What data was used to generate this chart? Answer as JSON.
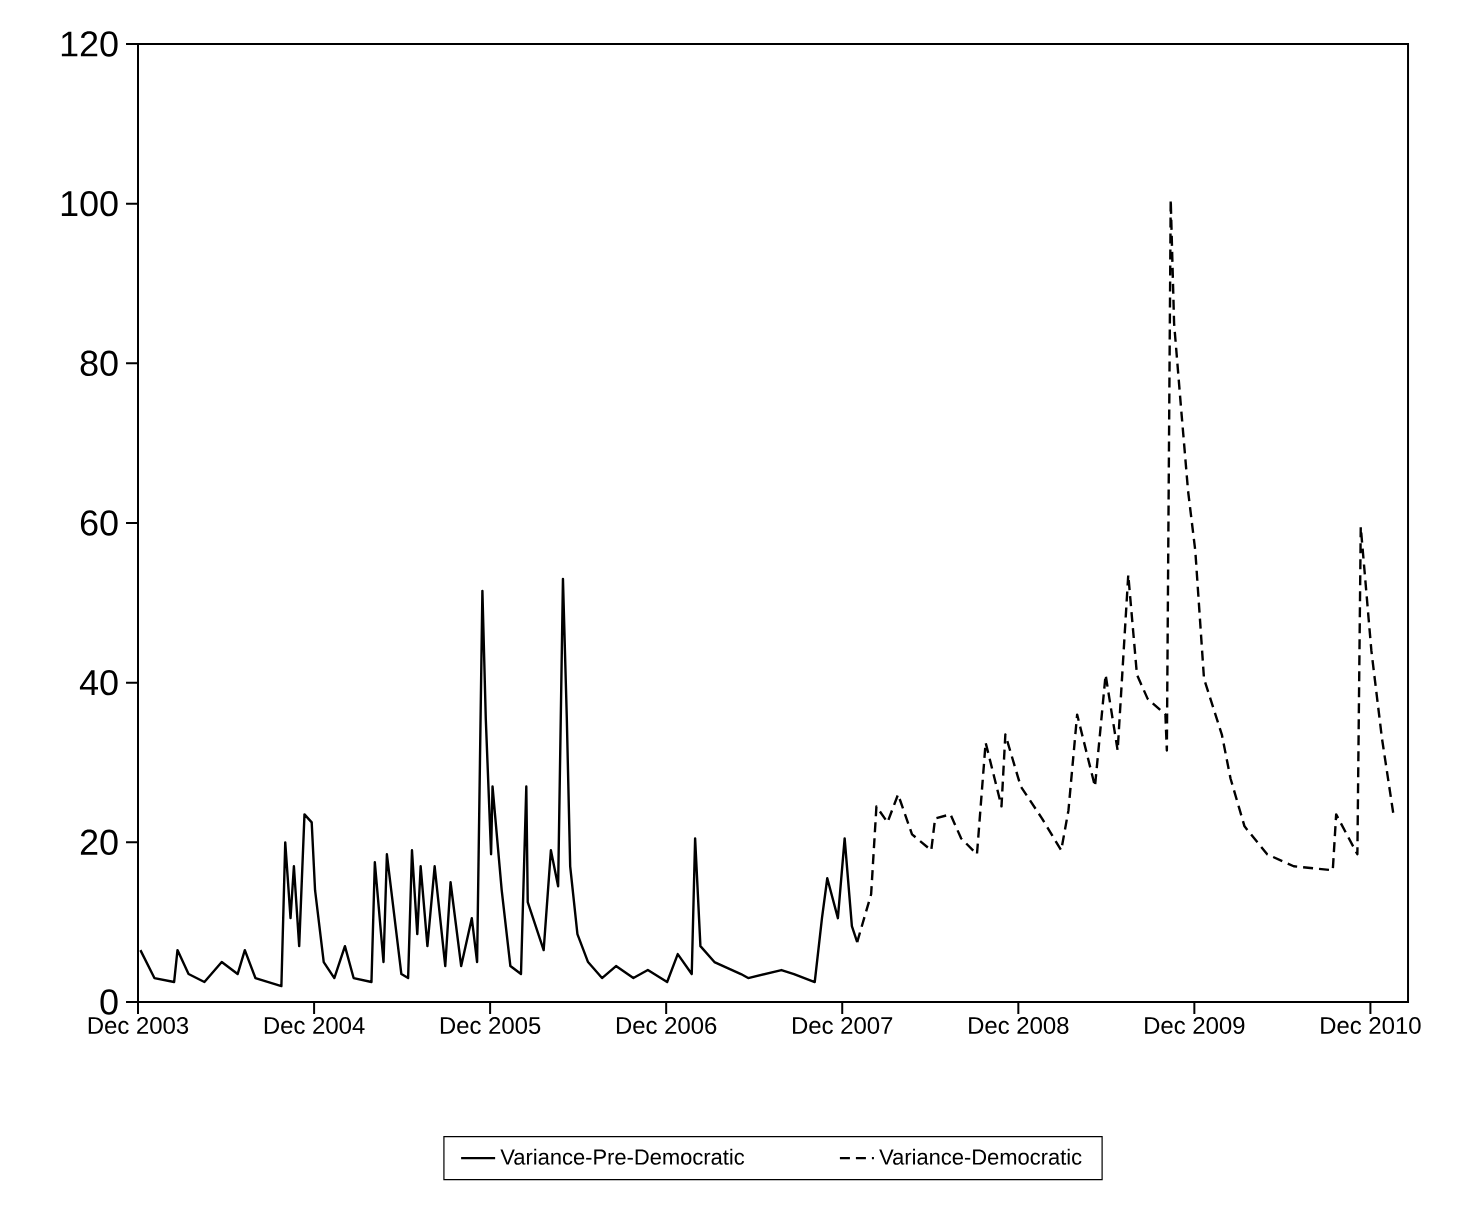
{
  "chart_data": {
    "type": "line",
    "xlim": [
      "2003-12-01",
      "2011-02-17"
    ],
    "xticks": [
      {
        "value": "2003-12-01",
        "label": "Dec 2003"
      },
      {
        "value": "2004-12-01",
        "label": "Dec 2004"
      },
      {
        "value": "2005-12-01",
        "label": "Dec 2005"
      },
      {
        "value": "2006-12-01",
        "label": "Dec 2006"
      },
      {
        "value": "2007-12-01",
        "label": "Dec 2007"
      },
      {
        "value": "2008-12-01",
        "label": "Dec 2008"
      },
      {
        "value": "2009-12-01",
        "label": "Dec 2009"
      },
      {
        "value": "2010-12-01",
        "label": "Dec 2010"
      }
    ],
    "ylim": [
      0,
      120
    ],
    "yticks": [
      0,
      20,
      40,
      60,
      80,
      100,
      120
    ],
    "grid": false,
    "legend": "bottom",
    "marker": "none",
    "series": [
      {
        "name": "Variance-Pre-Democratic",
        "color": "#000000",
        "line_style": "solid",
        "x": [
          "2003-12-06",
          "2004-01-04",
          "2004-02-14",
          "2004-02-21",
          "2004-03-15",
          "2004-04-17",
          "2004-05-23",
          "2004-06-25",
          "2004-07-10",
          "2004-08-01",
          "2004-09-24",
          "2004-10-02",
          "2004-10-13",
          "2004-10-20",
          "2004-10-31",
          "2004-11-11",
          "2004-11-26",
          "2004-12-03",
          "2004-12-21",
          "2005-01-12",
          "2005-02-03",
          "2005-02-21",
          "2005-03-30",
          "2005-04-06",
          "2005-04-24",
          "2005-05-01",
          "2005-05-31",
          "2005-06-14",
          "2005-06-22",
          "2005-07-03",
          "2005-07-10",
          "2005-07-24",
          "2005-08-08",
          "2005-08-30",
          "2005-09-10",
          "2005-10-02",
          "2005-10-24",
          "2005-11-04",
          "2005-11-15",
          "2005-11-22",
          "2005-12-03",
          "2005-12-06",
          "2005-12-25",
          "2006-01-12",
          "2006-02-03",
          "2006-02-14",
          "2006-02-17",
          "2006-03-22",
          "2006-04-06",
          "2006-04-21",
          "2006-05-01",
          "2006-05-09",
          "2006-05-16",
          "2006-05-31",
          "2006-06-22",
          "2006-07-21",
          "2006-08-19",
          "2006-09-24",
          "2006-10-24",
          "2006-12-03",
          "2006-12-25",
          "2007-01-23",
          "2007-01-30",
          "2007-02-10",
          "2007-03-11",
          "2007-05-05",
          "2007-05-20",
          "2007-07-28",
          "2007-08-23",
          "2007-10-05",
          "2007-10-20",
          "2007-10-31",
          "2007-11-22",
          "2007-12-06",
          "2007-12-21",
          "2008-01-01"
        ],
        "values": [
          6.5,
          3,
          2.5,
          6.5,
          3.5,
          2.5,
          5,
          3.5,
          6.5,
          3,
          2,
          20,
          10.5,
          17,
          7,
          23.5,
          22.5,
          14,
          5,
          3,
          7,
          3,
          2.5,
          17.5,
          5,
          18.5,
          3.5,
          3,
          19,
          8.5,
          17,
          7,
          17,
          4.5,
          15,
          4.5,
          10.5,
          5,
          51.5,
          35.5,
          18.5,
          27,
          14,
          4.5,
          3.5,
          27,
          12.5,
          6.5,
          19,
          14.5,
          53,
          35.5,
          17,
          8.5,
          5,
          3,
          4.5,
          3,
          4,
          2.5,
          6,
          3.5,
          20.5,
          7,
          5,
          3.5,
          3,
          4,
          3.5,
          2.5,
          10.5,
          15.5,
          10.5,
          20.5,
          9.5,
          7.5
        ]
      },
      {
        "name": "Variance-Democratic",
        "color": "#000000",
        "line_style": "dashed",
        "x": [
          "2008-01-01",
          "2008-01-30",
          "2008-02-10",
          "2008-03-04",
          "2008-03-26",
          "2008-04-24",
          "2008-06-03",
          "2008-06-11",
          "2008-07-13",
          "2008-08-04",
          "2008-09-06",
          "2008-09-24",
          "2008-10-27",
          "2008-11-04",
          "2008-12-06",
          "2009-01-19",
          "2009-02-28",
          "2009-03-15",
          "2009-04-02",
          "2009-05-09",
          "2009-05-31",
          "2009-06-25",
          "2009-07-17",
          "2009-08-04",
          "2009-08-26",
          "2009-10-02",
          "2009-10-05",
          "2009-10-13",
          "2009-10-20",
          "2009-11-04",
          "2009-11-18",
          "2009-12-03",
          "2009-12-21",
          "2010-01-27",
          "2010-02-14",
          "2010-03-15",
          "2010-05-01",
          "2010-06-25",
          "2010-09-14",
          "2010-09-21",
          "2010-11-04",
          "2010-11-11",
          "2010-12-03",
          "2010-12-25",
          "2011-01-19"
        ],
        "values": [
          7.5,
          13.5,
          24.5,
          22.5,
          26,
          21,
          19,
          23,
          23.5,
          20.5,
          18.5,
          32.5,
          24.5,
          33.5,
          27,
          23,
          19,
          24,
          36,
          27,
          41,
          31.5,
          53.5,
          41,
          38,
          36,
          31.5,
          100.5,
          85,
          74,
          64,
          56.5,
          40.5,
          33.5,
          28,
          22,
          18.5,
          17,
          16.5,
          23.5,
          18.5,
          59.5,
          44,
          33,
          23
        ]
      }
    ]
  }
}
